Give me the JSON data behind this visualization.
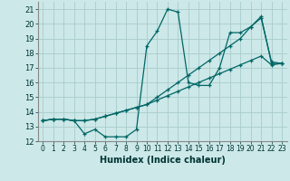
{
  "xlabel": "Humidex (Indice chaleur)",
  "background_color": "#cce8e8",
  "grid_color": "#aacccc",
  "line_color": "#006666",
  "xlim": [
    -0.5,
    23.5
  ],
  "ylim": [
    12,
    21.5
  ],
  "xticks": [
    0,
    1,
    2,
    3,
    4,
    5,
    6,
    7,
    8,
    9,
    10,
    11,
    12,
    13,
    14,
    15,
    16,
    17,
    18,
    19,
    20,
    21,
    22,
    23
  ],
  "yticks": [
    12,
    13,
    14,
    15,
    16,
    17,
    18,
    19,
    20,
    21
  ],
  "line1_x": [
    0,
    1,
    2,
    3,
    4,
    5,
    6,
    7,
    8,
    9,
    10,
    11,
    12,
    13,
    14,
    15,
    16,
    17,
    18,
    19,
    20,
    21,
    22,
    23
  ],
  "line1_y": [
    13.4,
    13.5,
    13.5,
    13.4,
    12.5,
    12.8,
    12.3,
    12.3,
    12.3,
    12.8,
    18.5,
    19.5,
    21.0,
    20.8,
    16.0,
    15.8,
    15.8,
    17.0,
    19.4,
    19.4,
    19.8,
    20.4,
    17.4,
    17.3
  ],
  "line2_x": [
    0,
    1,
    2,
    3,
    4,
    5,
    6,
    7,
    8,
    9,
    10,
    11,
    12,
    13,
    14,
    15,
    16,
    17,
    18,
    19,
    20,
    21,
    22,
    23
  ],
  "line2_y": [
    13.4,
    13.5,
    13.5,
    13.4,
    13.4,
    13.5,
    13.7,
    13.9,
    14.1,
    14.3,
    14.5,
    14.8,
    15.1,
    15.4,
    15.7,
    16.0,
    16.3,
    16.6,
    16.9,
    17.2,
    17.5,
    17.8,
    17.2,
    17.3
  ],
  "line3_x": [
    0,
    1,
    2,
    3,
    4,
    5,
    6,
    7,
    8,
    9,
    10,
    11,
    12,
    13,
    14,
    15,
    16,
    17,
    18,
    19,
    20,
    21,
    22,
    23
  ],
  "line3_y": [
    13.4,
    13.5,
    13.5,
    13.4,
    13.4,
    13.5,
    13.7,
    13.9,
    14.1,
    14.3,
    14.5,
    15.0,
    15.5,
    16.0,
    16.5,
    17.0,
    17.5,
    18.0,
    18.5,
    19.0,
    19.8,
    20.5,
    17.3,
    17.3
  ]
}
